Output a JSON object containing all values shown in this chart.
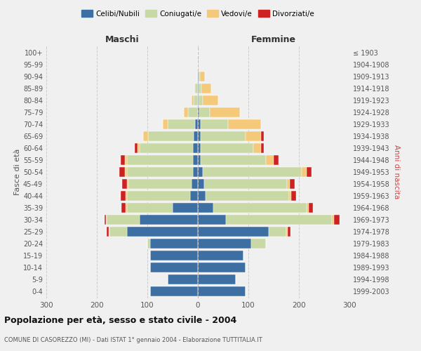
{
  "age_groups": [
    "0-4",
    "5-9",
    "10-14",
    "15-19",
    "20-24",
    "25-29",
    "30-34",
    "35-39",
    "40-44",
    "45-49",
    "50-54",
    "55-59",
    "60-64",
    "65-69",
    "70-74",
    "75-79",
    "80-84",
    "85-89",
    "90-94",
    "95-99",
    "100+"
  ],
  "birth_years": [
    "1999-2003",
    "1994-1998",
    "1989-1993",
    "1984-1988",
    "1979-1983",
    "1974-1978",
    "1969-1973",
    "1964-1968",
    "1959-1963",
    "1954-1958",
    "1949-1953",
    "1944-1948",
    "1939-1943",
    "1934-1938",
    "1929-1933",
    "1924-1928",
    "1919-1923",
    "1914-1918",
    "1909-1913",
    "1904-1908",
    "≤ 1903"
  ],
  "maschi": {
    "celibi": [
      95,
      60,
      95,
      95,
      95,
      140,
      115,
      50,
      15,
      12,
      10,
      10,
      10,
      8,
      5,
      0,
      0,
      0,
      0,
      0,
      0
    ],
    "coniugati": [
      0,
      0,
      0,
      0,
      5,
      35,
      65,
      90,
      125,
      125,
      130,
      130,
      105,
      90,
      55,
      20,
      8,
      5,
      2,
      0,
      0
    ],
    "vedovi": [
      0,
      0,
      0,
      0,
      0,
      2,
      2,
      3,
      3,
      3,
      5,
      5,
      5,
      10,
      10,
      8,
      5,
      2,
      0,
      0,
      0
    ],
    "divorziati": [
      0,
      0,
      0,
      0,
      0,
      3,
      3,
      8,
      10,
      10,
      10,
      8,
      5,
      0,
      0,
      0,
      0,
      0,
      0,
      0,
      0
    ]
  },
  "femmine": {
    "nubili": [
      95,
      75,
      95,
      90,
      105,
      140,
      55,
      30,
      15,
      12,
      10,
      5,
      5,
      5,
      5,
      3,
      2,
      2,
      2,
      0,
      0
    ],
    "coniugate": [
      0,
      0,
      0,
      0,
      30,
      35,
      210,
      185,
      165,
      165,
      195,
      130,
      105,
      90,
      55,
      20,
      8,
      5,
      2,
      0,
      0
    ],
    "vedove": [
      0,
      0,
      0,
      0,
      0,
      3,
      5,
      5,
      5,
      5,
      10,
      15,
      15,
      30,
      65,
      60,
      30,
      20,
      10,
      2,
      0
    ],
    "divorziate": [
      0,
      0,
      0,
      0,
      0,
      5,
      10,
      8,
      10,
      10,
      10,
      10,
      5,
      5,
      0,
      0,
      0,
      0,
      0,
      0,
      0
    ]
  },
  "color_celibi": "#3d6fa3",
  "color_coniugati": "#c8d9a5",
  "color_vedovi": "#f5c97a",
  "color_divorziati": "#cc2222",
  "title": "Popolazione per età, sesso e stato civile - 2004",
  "subtitle": "COMUNE DI CASOREZZO (MI) - Dati ISTAT 1° gennaio 2004 - Elaborazione TUTTITALIA.IT",
  "xlabel_left": "Maschi",
  "xlabel_right": "Femmine",
  "ylabel_left": "Fasce di età",
  "ylabel_right": "Anni di nascita",
  "xlim": 300,
  "background_color": "#f0f0f0",
  "grid_color": "#cccccc"
}
